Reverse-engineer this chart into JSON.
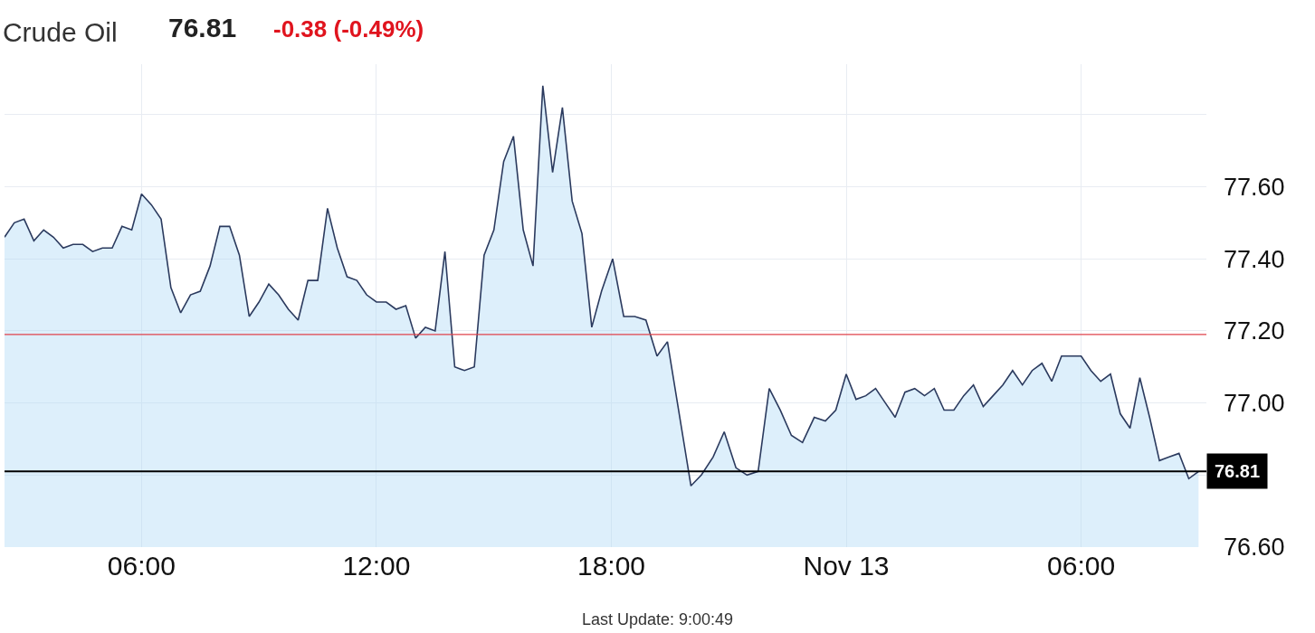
{
  "chart_data": {
    "type": "area",
    "title": "Crude Oil",
    "annotations": [
      "76.81",
      "-0.38 (-0.49%)",
      "Last Update: 9:00:49"
    ],
    "x": [
      "--11-12T02:30",
      "--11-12T02:45",
      "--11-12T03:00",
      "--11-12T03:15",
      "--11-12T03:30",
      "--11-12T03:45",
      "--11-12T04:00",
      "--11-12T04:15",
      "--11-12T04:30",
      "--11-12T04:45",
      "--11-12T05:00",
      "--11-12T05:15",
      "--11-12T05:30",
      "--11-12T05:45",
      "--11-12T06:00",
      "--11-12T06:15",
      "--11-12T06:30",
      "--11-12T06:45",
      "--11-12T07:00",
      "--11-12T07:15",
      "--11-12T07:30",
      "--11-12T07:45",
      "--11-12T08:00",
      "--11-12T08:15",
      "--11-12T08:30",
      "--11-12T08:45",
      "--11-12T09:00",
      "--11-12T09:15",
      "--11-12T09:30",
      "--11-12T09:45",
      "--11-12T10:00",
      "--11-12T10:15",
      "--11-12T10:30",
      "--11-12T10:45",
      "--11-12T11:00",
      "--11-12T11:15",
      "--11-12T11:30",
      "--11-12T11:45",
      "--11-12T12:00",
      "--11-12T12:15",
      "--11-12T12:30",
      "--11-12T12:45",
      "--11-12T13:00",
      "--11-12T13:15",
      "--11-12T13:30",
      "--11-12T13:45",
      "--11-12T14:00",
      "--11-12T14:15",
      "--11-12T14:30",
      "--11-12T14:45",
      "--11-12T15:00",
      "--11-12T15:15",
      "--11-12T15:30",
      "--11-12T15:45",
      "--11-12T16:00",
      "--11-12T16:15",
      "--11-12T16:30",
      "--11-12T16:45",
      "--11-12T17:00",
      "--11-12T17:15",
      "--11-12T17:30",
      "--11-12T17:45",
      "--11-12T18:02",
      "--11-12T18:19",
      "--11-12T18:36",
      "--11-12T18:53",
      "--11-12T19:10",
      "--11-12T19:26",
      "--11-12T20:02",
      "--11-12T20:18",
      "--11-12T20:36",
      "--11-12T20:53",
      "--11-12T21:11",
      "--11-12T21:28",
      "--11-12T21:45",
      "--11-12T22:02",
      "--11-12T22:19",
      "--11-12T22:36",
      "--11-12T22:53",
      "--11-12T23:11",
      "--11-12T23:28",
      "--11-12T23:44",
      "--11-13T00:00",
      "--11-13T00:15",
      "--11-13T00:30",
      "--11-13T00:45",
      "--11-13T01:00",
      "--11-13T01:15",
      "--11-13T01:30",
      "--11-13T01:45",
      "--11-13T02:00",
      "--11-13T02:15",
      "--11-13T02:30",
      "--11-13T02:45",
      "--11-13T03:00",
      "--11-13T03:15",
      "--11-13T03:30",
      "--11-13T03:45",
      "--11-13T04:00",
      "--11-13T04:15",
      "--11-13T04:30",
      "--11-13T04:45",
      "--11-13T05:00",
      "--11-13T05:15",
      "--11-13T05:30",
      "--11-13T05:45",
      "--11-13T06:00",
      "--11-13T06:15",
      "--11-13T06:30",
      "--11-13T06:45",
      "--11-13T07:00",
      "--11-13T07:15",
      "--11-13T07:30",
      "--11-13T07:45",
      "--11-13T08:00",
      "--11-13T08:15",
      "--11-13T08:30",
      "--11-13T08:45",
      "--11-13T09:00"
    ],
    "series": [
      {
        "color": "#2b3a5e",
        "values": [
          77.46,
          77.5,
          77.51,
          77.45,
          77.48,
          77.46,
          77.43,
          77.44,
          77.44,
          77.42,
          77.43,
          77.43,
          77.49,
          77.48,
          77.58,
          77.55,
          77.51,
          77.32,
          77.25,
          77.3,
          77.31,
          77.38,
          77.49,
          77.49,
          77.41,
          77.24,
          77.28,
          77.33,
          77.3,
          77.26,
          77.23,
          77.34,
          77.34,
          77.54,
          77.43,
          77.35,
          77.34,
          77.3,
          77.28,
          77.28,
          77.26,
          77.27,
          77.18,
          77.21,
          77.2,
          77.42,
          77.1,
          77.09,
          77.1,
          77.41,
          77.48,
          77.67,
          77.74,
          77.48,
          77.38,
          77.88,
          77.64,
          77.82,
          77.56,
          77.47,
          77.21,
          77.31,
          77.4,
          77.24,
          77.24,
          77.23,
          77.13,
          77.17,
          76.77,
          76.8,
          76.85,
          76.92,
          76.82,
          76.8,
          76.81,
          77.04,
          76.98,
          76.91,
          76.89,
          76.96,
          76.95,
          76.98,
          77.08,
          77.01,
          77.02,
          77.04,
          77,
          76.96,
          77.03,
          77.04,
          77.02,
          77.04,
          76.98,
          76.98,
          77.02,
          77.05,
          76.99,
          77.02,
          77.05,
          77.09,
          77.05,
          77.09,
          77.11,
          77.06,
          77.13,
          77.13,
          77.13,
          77.09,
          77.06,
          77.08,
          76.97,
          76.93,
          77.07,
          76.96,
          76.84,
          76.85,
          76.86,
          76.79,
          76.81
        ]
      }
    ],
    "xlim": [
      "--11-12T02:30",
      "--11-13T09:12"
    ],
    "xticks": [
      {
        "value": "--11-12T06:00",
        "label": "06:00"
      },
      {
        "value": "--11-12T12:00",
        "label": "12:00"
      },
      {
        "value": "--11-12T18:00",
        "label": "18:00"
      },
      {
        "value": "--11-13T00:00",
        "label": "Nov 13"
      },
      {
        "value": "--11-13T06:00",
        "label": "06:00"
      }
    ],
    "ylim": [
      76.6,
      77.94
    ],
    "yticks": [
      {
        "value": 76.6,
        "label": "76.60"
      },
      {
        "value": 76.8,
        "label": null
      },
      {
        "value": 77.0,
        "label": "77.00"
      },
      {
        "value": 77.2,
        "label": "77.20"
      },
      {
        "value": 77.4,
        "label": "77.40"
      },
      {
        "value": 77.6,
        "label": "77.60"
      },
      {
        "value": 77.8,
        "label": null
      }
    ],
    "ref_lines": [
      {
        "axis": "y",
        "value": 77.19,
        "color": "#e0424b",
        "line_style": "solid"
      },
      {
        "axis": "y",
        "value": 76.81,
        "label": "76.81",
        "color": "#000000",
        "line_style": "solid"
      }
    ],
    "grid": true,
    "marker": "none",
    "line_style": "solid"
  }
}
